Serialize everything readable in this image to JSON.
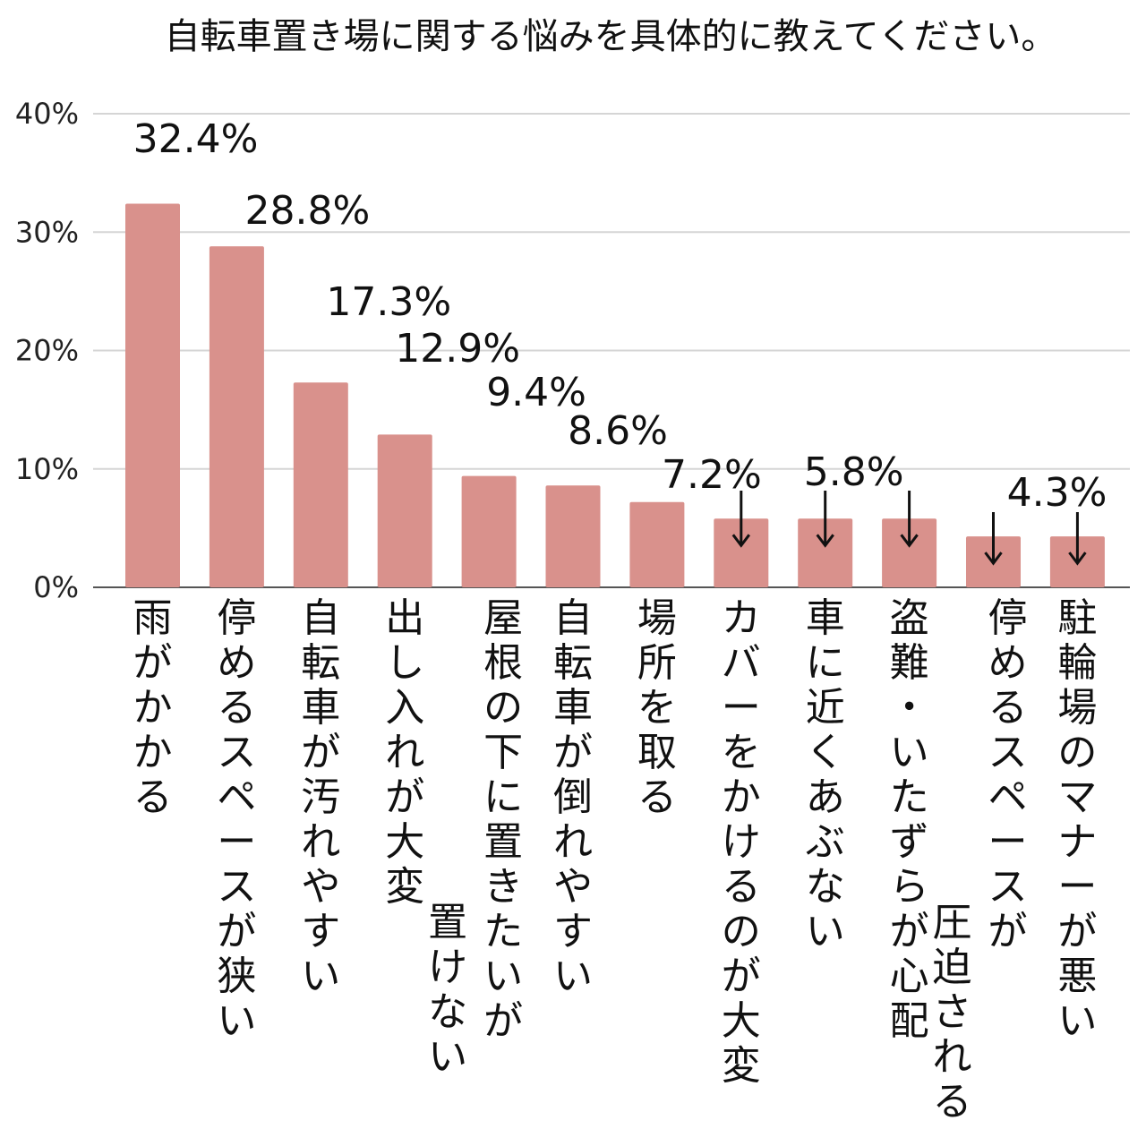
{
  "chart_data": {
    "type": "bar",
    "title": "自転車置き場に関する悩みを具体的に教えてください。",
    "xlabel": "",
    "ylabel": "",
    "ylim": [
      0,
      40
    ],
    "y_ticks": [
      "0%",
      "10%",
      "20%",
      "30%",
      "40%"
    ],
    "grid": true,
    "bar_color": "#d9918c",
    "categories": [
      [
        "雨がかかる"
      ],
      [
        "停めるスペースが狭い"
      ],
      [
        "自転車が汚れやすい"
      ],
      [
        "出し入れが大変"
      ],
      [
        "屋根の下に置きたいが",
        "置けない"
      ],
      [
        "自転車が倒れやすい"
      ],
      [
        "場所を取る"
      ],
      [
        "カバーをかけるのが大変"
      ],
      [
        "車に近くあぶない"
      ],
      [
        "盗難・いたずらが心配"
      ],
      [
        "停めるスペースが",
        "圧迫される"
      ],
      [
        "駐輪場のマナーが悪い"
      ]
    ],
    "values": [
      32.4,
      28.8,
      17.3,
      12.9,
      9.4,
      8.6,
      7.2,
      5.8,
      5.8,
      5.8,
      4.3,
      4.3
    ],
    "value_labels": [
      "32.4%",
      "28.8%",
      "17.3%",
      "12.9%",
      "9.4%",
      "8.6%",
      "7.2%",
      "",
      "5.8%",
      "",
      "4.3%",
      ""
    ],
    "shared_label_arrows": [
      false,
      false,
      false,
      false,
      false,
      false,
      false,
      true,
      true,
      true,
      true,
      true
    ]
  }
}
